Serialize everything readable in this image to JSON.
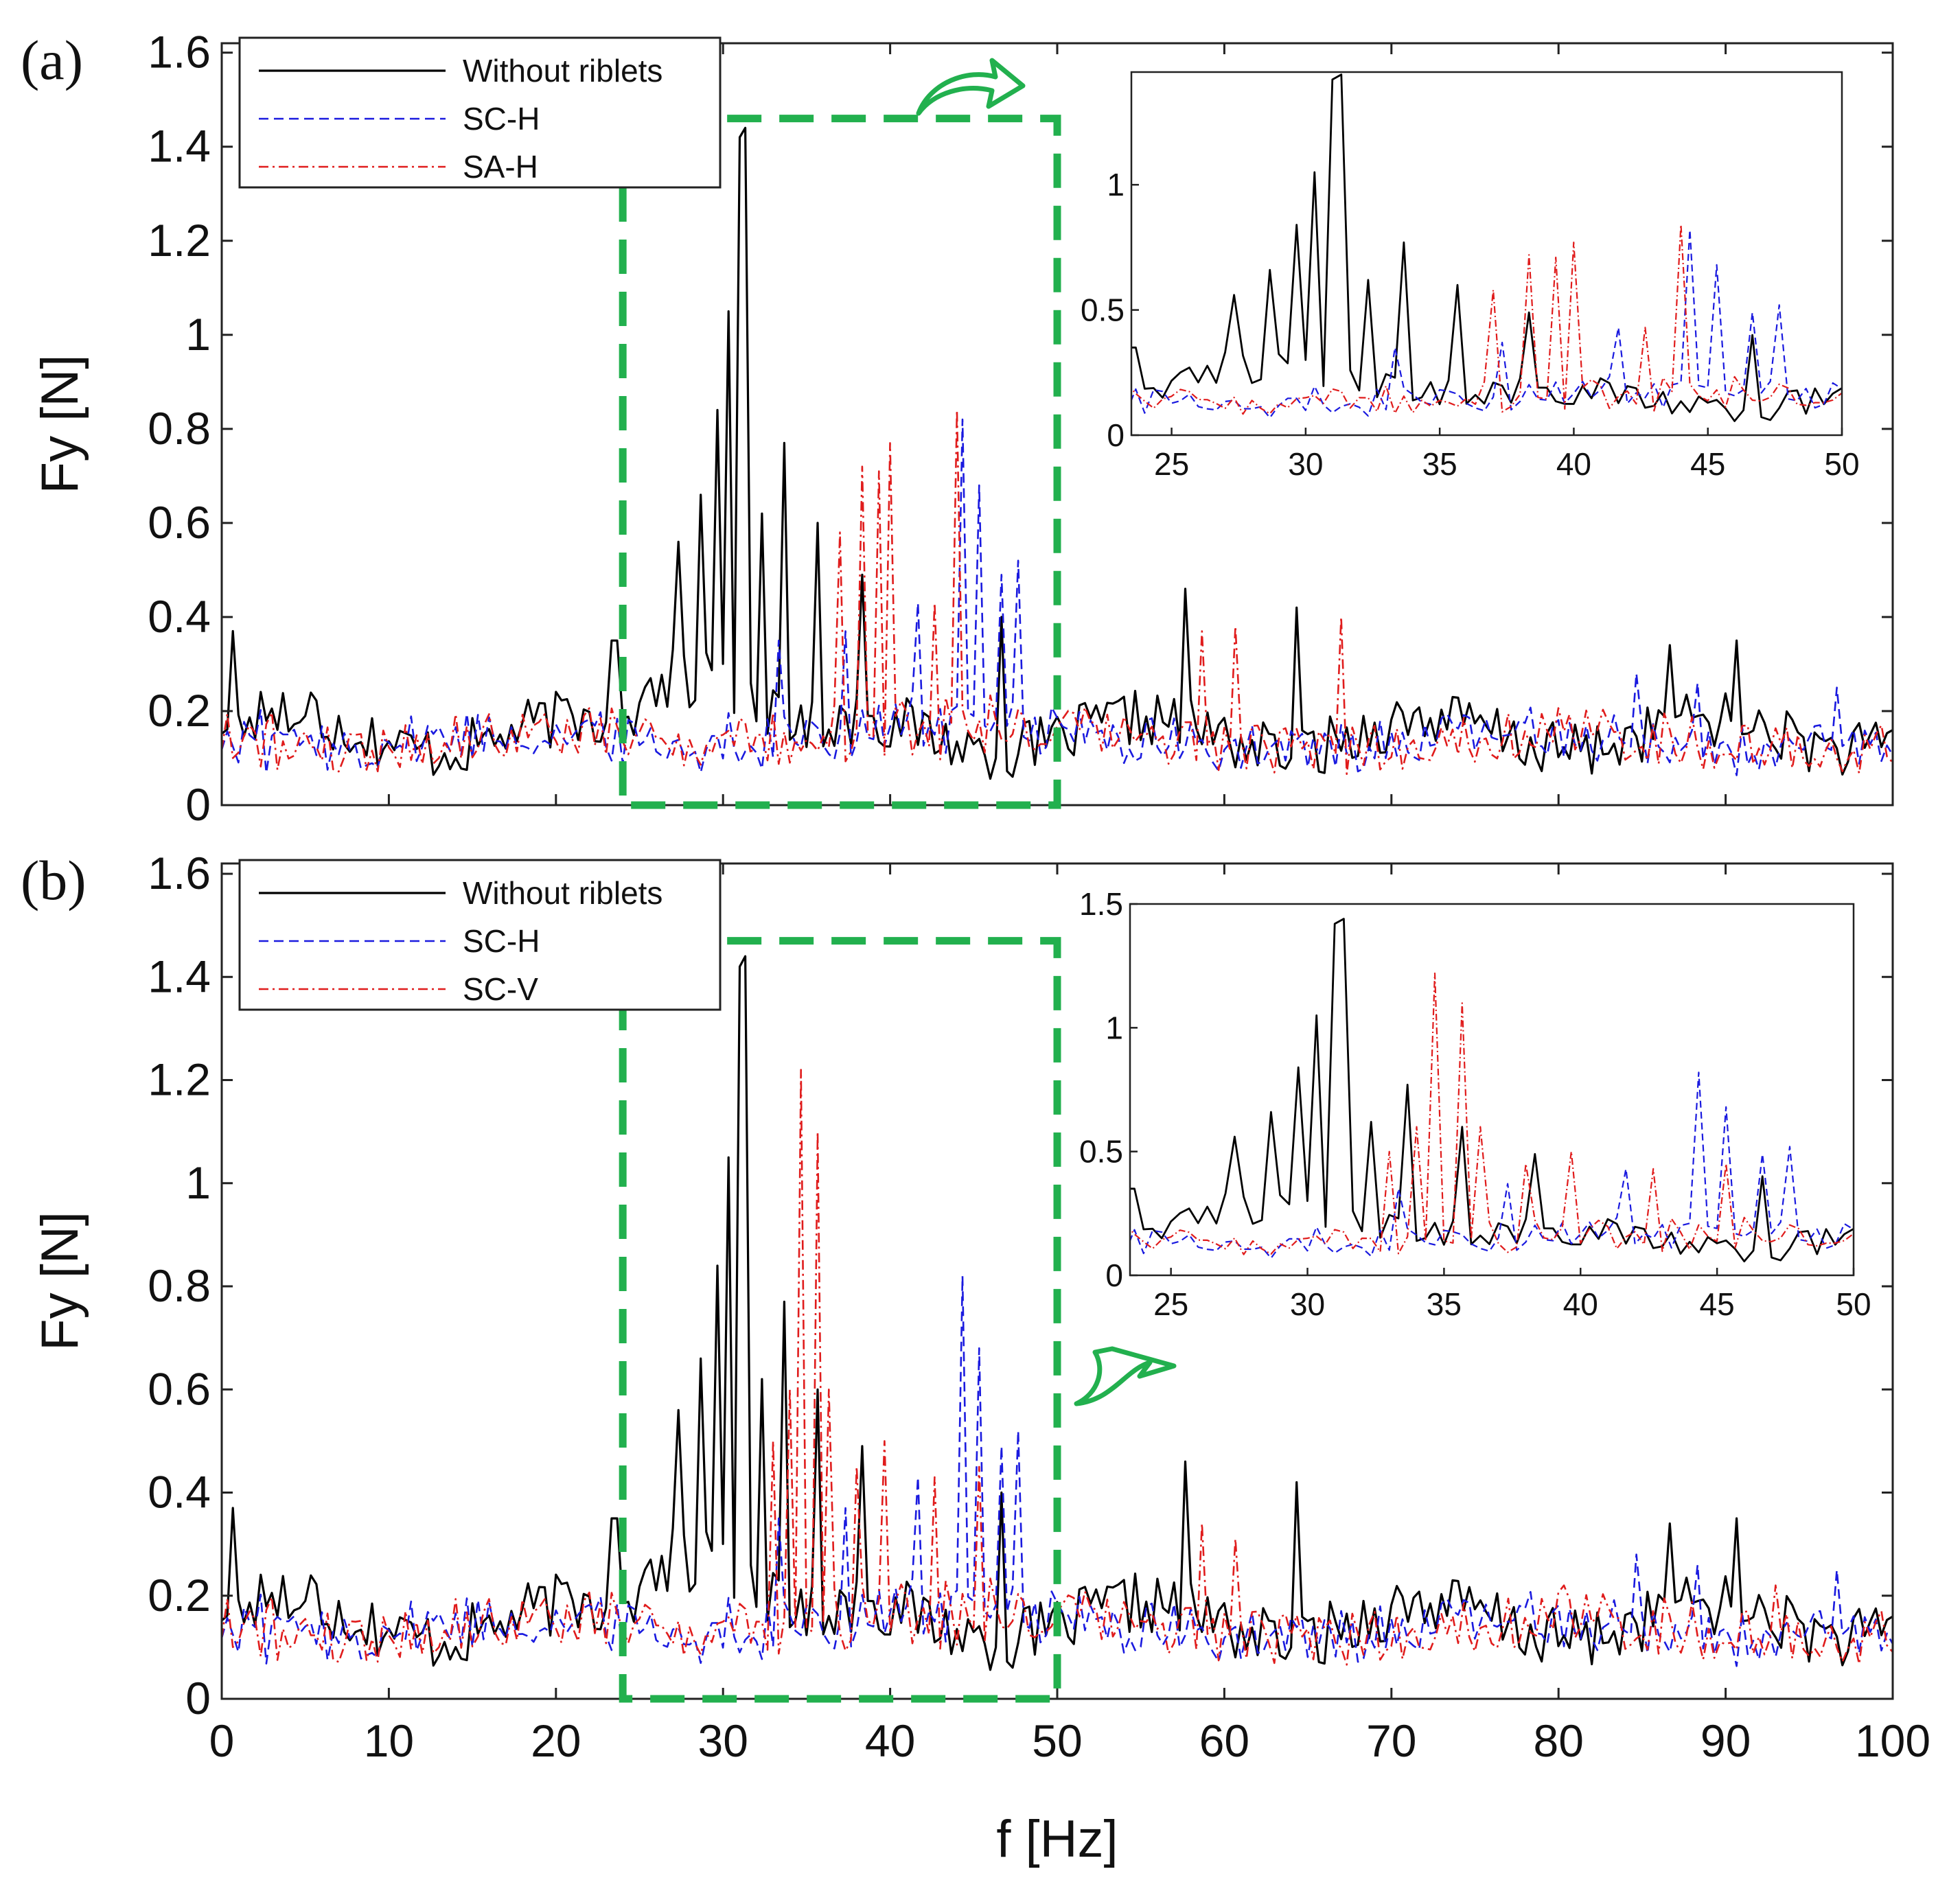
{
  "figure": {
    "xlabel": "f [Hz]",
    "ylabel": "Fy [N]",
    "colors": {
      "without": "#000000",
      "sch": "#1a1adf",
      "red": "#e01c1c",
      "highlight": "#22b04e",
      "axes": "#222222"
    }
  },
  "chart_data": [
    {
      "type": "line",
      "panel": "(a)",
      "xlabel": "",
      "ylabel": "Fy [N]",
      "xlim": [
        0,
        100
      ],
      "ylim": [
        0,
        1.62
      ],
      "xticks": [
        "0",
        "10",
        "20",
        "30",
        "40",
        "50",
        "60",
        "70",
        "80",
        "90",
        "100"
      ],
      "yticks": [
        "0",
        "0.2",
        "0.4",
        "0.6",
        "0.8",
        "1",
        "1.2",
        "1.4",
        "1.6"
      ],
      "legend_position": "top-left",
      "highlight_region": {
        "x": [
          24,
          50
        ],
        "y": [
          0,
          1.46
        ],
        "style": "green dashed box"
      },
      "series": [
        {
          "name": "Without riblets",
          "style": "solid",
          "color": "#000000",
          "peaks": [
            [
              0.6,
              0.37
            ],
            [
              20.5,
              0.22
            ],
            [
              23.5,
              0.35
            ],
            [
              27.2,
              0.56
            ],
            [
              28.8,
              0.66
            ],
            [
              29.8,
              0.84
            ],
            [
              30.4,
              1.05
            ],
            [
              30.9,
              1.42
            ],
            [
              31.4,
              1.44
            ],
            [
              32.3,
              0.62
            ],
            [
              33.7,
              0.77
            ],
            [
              35.7,
              0.6
            ],
            [
              38.3,
              0.49
            ],
            [
              46.7,
              0.4
            ],
            [
              57.7,
              0.46
            ],
            [
              64.2,
              0.42
            ],
            [
              86.6,
              0.34
            ],
            [
              90.5,
              0.35
            ]
          ]
        },
        {
          "name": "SC-H",
          "style": "dashed",
          "color": "#1a1adf",
          "peaks": [
            [
              33.2,
              0.35
            ],
            [
              37.4,
              0.37
            ],
            [
              41.5,
              0.43
            ],
            [
              44.3,
              0.82
            ],
            [
              45.2,
              0.68
            ],
            [
              46.7,
              0.49
            ],
            [
              47.8,
              0.52
            ],
            [
              84.5,
              0.28
            ],
            [
              88.4,
              0.26
            ],
            [
              96.5,
              0.25
            ]
          ]
        },
        {
          "name": "SA-H",
          "style": "dash-dot",
          "color": "#e01c1c",
          "peaks": [
            [
              36.9,
              0.58
            ],
            [
              38.2,
              0.72
            ],
            [
              39.2,
              0.71
            ],
            [
              40.1,
              0.77
            ],
            [
              42.5,
              0.43
            ],
            [
              43.9,
              0.84
            ],
            [
              58.6,
              0.37
            ],
            [
              60.6,
              0.38
            ],
            [
              67.0,
              0.4
            ]
          ]
        }
      ]
    },
    {
      "type": "line",
      "panel": "(b)",
      "xlabel": "f [Hz]",
      "ylabel": "Fy [N]",
      "xlim": [
        0,
        100
      ],
      "ylim": [
        0,
        1.62
      ],
      "xticks": [
        "0",
        "10",
        "20",
        "30",
        "40",
        "50",
        "60",
        "70",
        "80",
        "90",
        "100"
      ],
      "yticks": [
        "0",
        "0.2",
        "0.4",
        "0.6",
        "0.8",
        "1",
        "1.2",
        "1.4",
        "1.6"
      ],
      "legend_position": "top-left",
      "highlight_region": {
        "x": [
          24,
          50
        ],
        "y": [
          0,
          1.47
        ],
        "style": "green dashed box"
      },
      "series": [
        {
          "name": "Without riblets",
          "style": "solid",
          "color": "#000000",
          "peaks": [
            [
              0.6,
              0.37
            ],
            [
              20.5,
              0.22
            ],
            [
              23.5,
              0.35
            ],
            [
              27.2,
              0.56
            ],
            [
              28.8,
              0.66
            ],
            [
              29.8,
              0.84
            ],
            [
              30.4,
              1.05
            ],
            [
              30.9,
              1.42
            ],
            [
              31.4,
              1.44
            ],
            [
              32.3,
              0.62
            ],
            [
              33.7,
              0.77
            ],
            [
              35.7,
              0.6
            ],
            [
              38.3,
              0.49
            ],
            [
              46.7,
              0.4
            ],
            [
              57.7,
              0.46
            ],
            [
              64.2,
              0.42
            ],
            [
              86.6,
              0.34
            ],
            [
              90.5,
              0.35
            ]
          ]
        },
        {
          "name": "SC-H",
          "style": "dashed",
          "color": "#1a1adf",
          "peaks": [
            [
              33.2,
              0.35
            ],
            [
              37.4,
              0.37
            ],
            [
              41.5,
              0.43
            ],
            [
              44.3,
              0.82
            ],
            [
              45.2,
              0.68
            ],
            [
              46.7,
              0.49
            ],
            [
              47.8,
              0.52
            ],
            [
              84.5,
              0.28
            ],
            [
              88.4,
              0.26
            ],
            [
              96.5,
              0.25
            ]
          ]
        },
        {
          "name": "SC-V",
          "style": "dash-dot",
          "color": "#e01c1c",
          "peaks": [
            [
              32.9,
              0.5
            ],
            [
              34.0,
              0.6
            ],
            [
              34.7,
              1.22
            ],
            [
              35.5,
              1.1
            ],
            [
              36.2,
              0.6
            ],
            [
              38.0,
              0.45
            ],
            [
              39.6,
              0.5
            ],
            [
              42.8,
              0.43
            ],
            [
              45.4,
              0.45
            ],
            [
              58.6,
              0.34
            ],
            [
              60.6,
              0.31
            ],
            [
              80.2,
              0.22
            ],
            [
              93.0,
              0.22
            ]
          ]
        }
      ]
    }
  ],
  "insets": [
    {
      "panel": "(a)",
      "xlim": [
        23.5,
        50
      ],
      "ylim": [
        0,
        1.45
      ],
      "xticks": [
        "25",
        "30",
        "35",
        "40",
        "45",
        "50"
      ],
      "yticks": [
        "0",
        "0.5",
        "1"
      ]
    },
    {
      "panel": "(b)",
      "xlim": [
        23.5,
        50
      ],
      "ylim": [
        0,
        1.5
      ],
      "xticks": [
        "25",
        "30",
        "35",
        "40",
        "45",
        "50"
      ],
      "yticks": [
        "0",
        "0.5",
        "1",
        "1.5"
      ]
    }
  ]
}
